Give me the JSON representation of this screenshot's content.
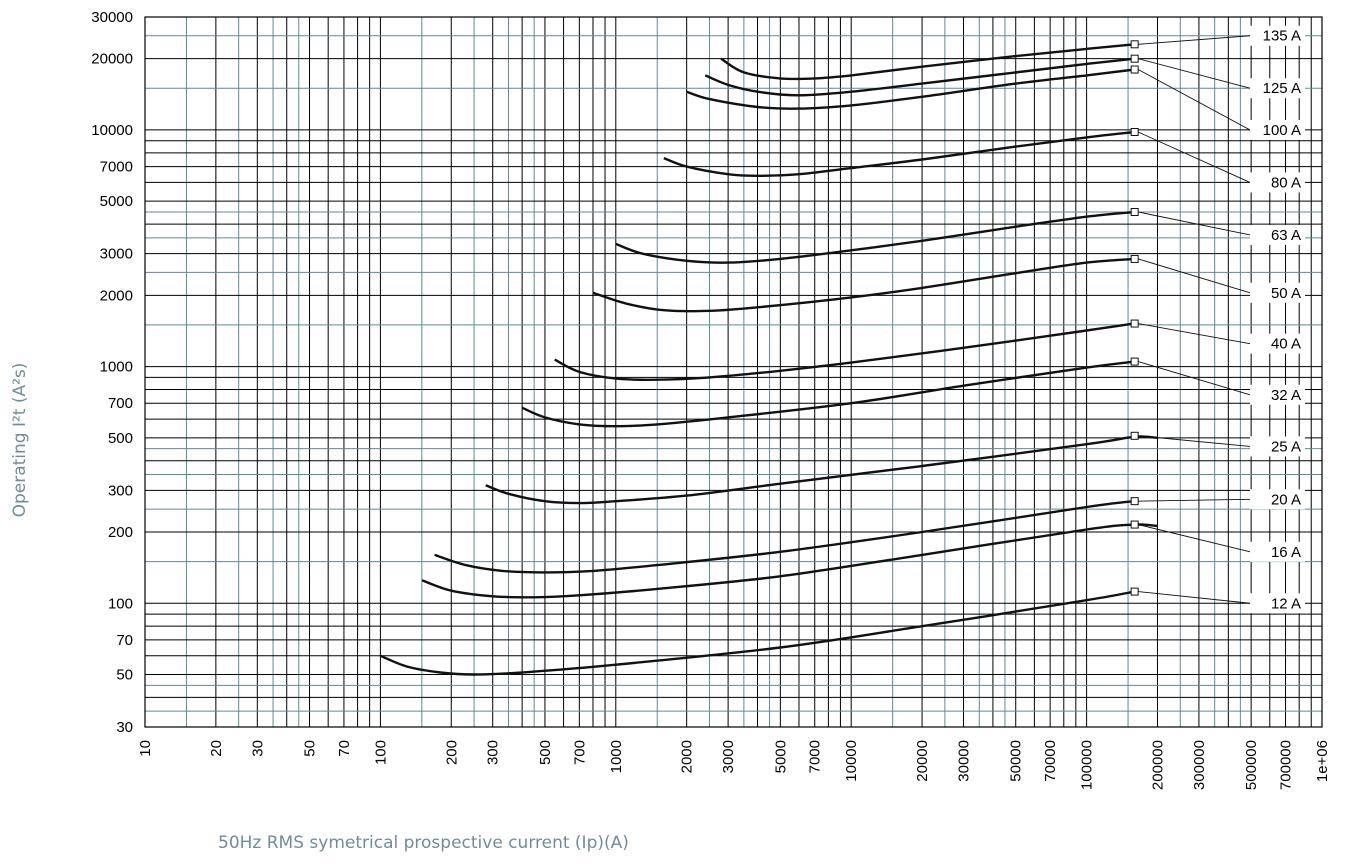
{
  "chart_data": {
    "type": "line",
    "title": "",
    "xlabel": "50Hz RMS symetrical prospective current (Ip)(A)",
    "ylabel": "Operating I²t (A²s)",
    "xscale": "log",
    "yscale": "log",
    "xlim": [
      10,
      1000000
    ],
    "ylim": [
      30,
      30000
    ],
    "grid": true,
    "x_ticks": [
      10,
      20,
      30,
      50,
      70,
      100,
      200,
      300,
      500,
      700,
      1000,
      2000,
      3000,
      5000,
      7000,
      10000,
      20000,
      30000,
      50000,
      70000,
      100000,
      200000,
      300000,
      500000,
      700000,
      1000000
    ],
    "x_tick_labels": [
      "10",
      "20",
      "30",
      "50",
      "70",
      "100",
      "200",
      "300",
      "500",
      "700",
      "1000",
      "2000",
      "3000",
      "5000",
      "7000",
      "10000",
      "20000",
      "30000",
      "50000",
      "70000",
      "100000",
      "200000",
      "300000",
      "500000",
      "700000",
      "1e+06"
    ],
    "y_ticks": [
      30,
      50,
      70,
      100,
      200,
      300,
      500,
      700,
      1000,
      2000,
      3000,
      5000,
      7000,
      10000,
      20000,
      30000
    ],
    "y_tick_labels": [
      "30",
      "50",
      "70",
      "100",
      "200",
      "300",
      "500",
      "700",
      "1000",
      "2000",
      "3000",
      "5000",
      "7000",
      "10000",
      "20000",
      "30000"
    ],
    "series": [
      {
        "name": "135 A",
        "label_y": 25000,
        "marker": [
          160000,
          23000
        ],
        "x": [
          2800,
          3500,
          5000,
          7000,
          10000,
          20000,
          50000,
          100000,
          160000
        ],
        "y": [
          20000,
          17500,
          16500,
          16500,
          17000,
          18500,
          20500,
          22000,
          23000
        ]
      },
      {
        "name": "125 A",
        "label_y": 15000,
        "marker": [
          160000,
          20000
        ],
        "x": [
          2400,
          3000,
          4000,
          6000,
          10000,
          20000,
          50000,
          100000,
          160000
        ],
        "y": [
          17000,
          15500,
          14500,
          14000,
          14500,
          15700,
          17500,
          19000,
          20000
        ]
      },
      {
        "name": "100 A",
        "label_y": 10000,
        "marker": [
          160000,
          18000
        ],
        "x": [
          2000,
          2500,
          4000,
          6000,
          10000,
          20000,
          50000,
          100000,
          160000
        ],
        "y": [
          14500,
          13500,
          12500,
          12300,
          12700,
          13800,
          15700,
          17000,
          18000
        ]
      },
      {
        "name": "80 A",
        "label_y": 6000,
        "marker": [
          160000,
          9800
        ],
        "x": [
          1600,
          2000,
          3000,
          4000,
          6000,
          10000,
          20000,
          50000,
          100000,
          160000
        ],
        "y": [
          7600,
          7000,
          6500,
          6400,
          6500,
          6900,
          7500,
          8500,
          9300,
          9800
        ]
      },
      {
        "name": "63 A",
        "label_y": 3600,
        "marker": [
          160000,
          4500
        ],
        "x": [
          1000,
          1300,
          2000,
          3000,
          5000,
          10000,
          20000,
          50000,
          100000,
          160000
        ],
        "y": [
          3300,
          3000,
          2800,
          2750,
          2850,
          3100,
          3400,
          3900,
          4300,
          4500
        ]
      },
      {
        "name": "50 A",
        "label_y": 2050,
        "marker": [
          160000,
          2850
        ],
        "x": [
          800,
          1100,
          1600,
          2500,
          4000,
          10000,
          20000,
          50000,
          100000,
          160000
        ],
        "y": [
          2050,
          1850,
          1730,
          1720,
          1780,
          1960,
          2150,
          2480,
          2750,
          2850
        ]
      },
      {
        "name": "40 A",
        "label_y": 1250,
        "marker": [
          160000,
          1520
        ],
        "x": [
          550,
          700,
          1000,
          1500,
          2500,
          5000,
          10000,
          30000,
          100000,
          160000
        ],
        "y": [
          1070,
          950,
          890,
          880,
          900,
          960,
          1040,
          1200,
          1420,
          1520
        ]
      },
      {
        "name": "32 A",
        "label_y": 760,
        "marker": [
          160000,
          1050
        ],
        "x": [
          400,
          500,
          700,
          1000,
          1500,
          3000,
          10000,
          30000,
          100000,
          160000
        ],
        "y": [
          670,
          610,
          570,
          560,
          570,
          610,
          700,
          830,
          990,
          1050
        ]
      },
      {
        "name": "25 A",
        "label_y": 460,
        "marker": [
          160000,
          510
        ],
        "x": [
          280,
          350,
          500,
          700,
          1000,
          2000,
          5000,
          20000,
          100000,
          160000,
          200000
        ],
        "y": [
          315,
          290,
          270,
          265,
          270,
          285,
          320,
          380,
          470,
          505,
          500
        ]
      },
      {
        "name": "20 A",
        "label_y": 275,
        "marker": [
          160000,
          270
        ],
        "x": [
          170,
          230,
          330,
          500,
          800,
          1500,
          5000,
          20000,
          100000,
          160000
        ],
        "y": [
          160,
          145,
          137,
          135,
          137,
          145,
          165,
          200,
          255,
          270
        ]
      },
      {
        "name": "16 A",
        "label_y": 165,
        "marker": [
          160000,
          215
        ],
        "x": [
          150,
          200,
          300,
          450,
          700,
          1500,
          5000,
          20000,
          100000,
          160000,
          200000
        ],
        "y": [
          125,
          113,
          107,
          106,
          108,
          115,
          130,
          160,
          205,
          215,
          212
        ]
      },
      {
        "name": "12 A",
        "label_y": 100,
        "marker": [
          160000,
          112
        ],
        "x": [
          100,
          130,
          180,
          250,
          400,
          1000,
          5000,
          20000,
          100000,
          160000
        ],
        "y": [
          60,
          54,
          51,
          50,
          51,
          55,
          65,
          80,
          103,
          112
        ]
      }
    ]
  }
}
